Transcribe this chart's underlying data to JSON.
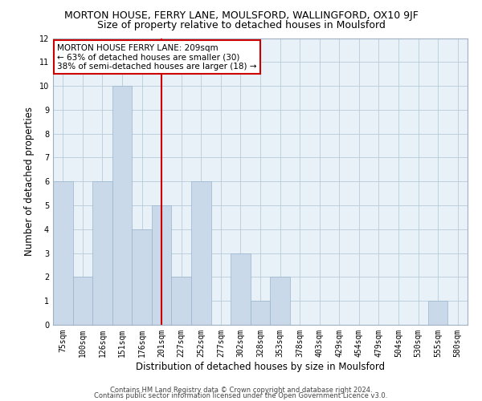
{
  "title": "MORTON HOUSE, FERRY LANE, MOULSFORD, WALLINGFORD, OX10 9JF",
  "subtitle": "Size of property relative to detached houses in Moulsford",
  "xlabel": "Distribution of detached houses by size in Moulsford",
  "ylabel": "Number of detached properties",
  "bin_labels": [
    "75sqm",
    "100sqm",
    "126sqm",
    "151sqm",
    "176sqm",
    "201sqm",
    "227sqm",
    "252sqm",
    "277sqm",
    "302sqm",
    "328sqm",
    "353sqm",
    "378sqm",
    "403sqm",
    "429sqm",
    "454sqm",
    "479sqm",
    "504sqm",
    "530sqm",
    "555sqm",
    "580sqm"
  ],
  "bar_values": [
    6,
    2,
    6,
    10,
    4,
    5,
    2,
    6,
    0,
    3,
    1,
    2,
    0,
    0,
    0,
    0,
    0,
    0,
    0,
    1,
    0
  ],
  "bar_color": "#c9d9ea",
  "bar_edgecolor": "#9ab4cc",
  "bar_linewidth": 0.5,
  "vline_x_index": 5.0,
  "vline_color": "#cc0000",
  "annotation_text": "MORTON HOUSE FERRY LANE: 209sqm\n← 63% of detached houses are smaller (30)\n38% of semi-detached houses are larger (18) →",
  "annotation_box_edgecolor": "#cc0000",
  "annotation_box_facecolor": "#ffffff",
  "ylim": [
    0,
    12
  ],
  "yticks": [
    0,
    1,
    2,
    3,
    4,
    5,
    6,
    7,
    8,
    9,
    10,
    11,
    12
  ],
  "grid_color": "#b8ccd8",
  "background_color": "#e8f0f8",
  "footer_line1": "Contains HM Land Registry data © Crown copyright and database right 2024.",
  "footer_line2": "Contains public sector information licensed under the Open Government Licence v3.0.",
  "title_fontsize": 9,
  "subtitle_fontsize": 9,
  "xlabel_fontsize": 8.5,
  "ylabel_fontsize": 8.5,
  "tick_fontsize": 7,
  "annotation_fontsize": 7.5,
  "footer_fontsize": 6
}
